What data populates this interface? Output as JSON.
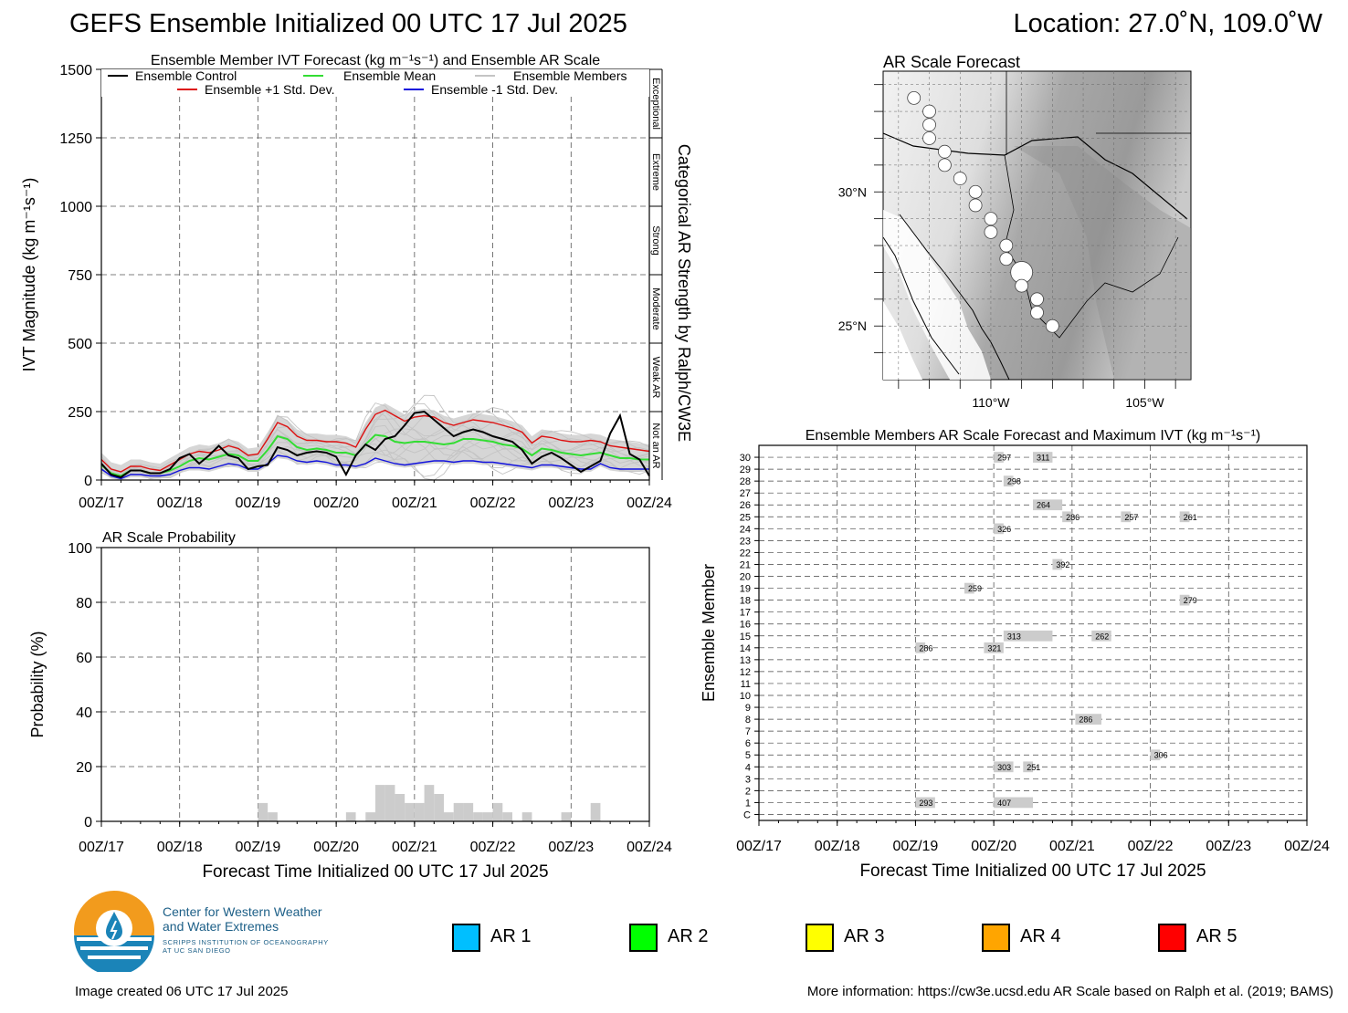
{
  "header": {
    "title": "GEFS Ensemble Initialized 00 UTC 17 Jul 2025",
    "location": "Location: 27.0˚N, 109.0˚W"
  },
  "colors": {
    "control": "#000000",
    "mean": "#33dd33",
    "plus_std": "#dd1111",
    "minus_std": "#1111dd",
    "members": "#c4c4c4",
    "envelope": "#d6d6d6",
    "prob_bar": "#cccccc",
    "ar1": "#00bfff",
    "ar2": "#00ff00",
    "ar3": "#ffff00",
    "ar4": "#ffa500",
    "ar5": "#ff0000"
  },
  "chart_data": [
    {
      "id": "ivt",
      "type": "line",
      "title": "Ensemble Member IVT Forecast (kg m⁻¹s⁻¹) and Ensemble AR Scale",
      "ylabel": "IVT Magnitude (kg m⁻¹s⁻¹)",
      "right_label": "Categorical AR Strength by Ralph/CW3E",
      "ylim": [
        0,
        1500
      ],
      "yticks": [
        0,
        250,
        500,
        750,
        1000,
        1250,
        1500
      ],
      "xlim": [
        0,
        168
      ],
      "x_tick_labels": [
        "00Z/17",
        "00Z/18",
        "00Z/19",
        "00Z/20",
        "00Z/21",
        "00Z/22",
        "00Z/23",
        "00Z/24"
      ],
      "categories": [
        {
          "label": "Not an AR",
          "from": 0,
          "to": 250
        },
        {
          "label": "Weak AR",
          "from": 250,
          "to": 500
        },
        {
          "label": "Moderate",
          "from": 500,
          "to": 750
        },
        {
          "label": "Strong",
          "from": 750,
          "to": 1000
        },
        {
          "label": "Extreme",
          "from": 1000,
          "to": 1250
        },
        {
          "label": "Exceptional",
          "from": 1250,
          "to": 1500
        }
      ],
      "legend": {
        "control": "Ensemble Control",
        "mean": "Ensemble Mean",
        "members": "Ensemble Members",
        "plus_std": "Ensemble +1 Std. Dev.",
        "minus_std": "Ensemble -1 Std. Dev."
      },
      "x": [
        0,
        3,
        6,
        9,
        12,
        15,
        18,
        21,
        24,
        27,
        30,
        33,
        36,
        39,
        42,
        45,
        48,
        51,
        54,
        57,
        60,
        63,
        66,
        69,
        72,
        75,
        78,
        81,
        84,
        87,
        90,
        93,
        96,
        99,
        102,
        105,
        108,
        111,
        114,
        117,
        120,
        123,
        126,
        129,
        132,
        135,
        138,
        141,
        144,
        147,
        150,
        153,
        156,
        159,
        162,
        165,
        168
      ],
      "series": [
        {
          "key": "plus_std",
          "values": [
            75,
            40,
            30,
            50,
            50,
            40,
            35,
            55,
            75,
            95,
            105,
            100,
            110,
            125,
            115,
            90,
            95,
            150,
            210,
            195,
            160,
            145,
            145,
            140,
            140,
            135,
            120,
            185,
            240,
            255,
            235,
            215,
            230,
            235,
            230,
            210,
            200,
            210,
            220,
            215,
            210,
            200,
            190,
            175,
            135,
            160,
            155,
            145,
            140,
            140,
            145,
            140,
            125,
            120,
            115,
            110,
            105
          ]
        },
        {
          "key": "mean",
          "values": [
            55,
            25,
            15,
            35,
            35,
            25,
            25,
            35,
            50,
            70,
            80,
            75,
            85,
            95,
            90,
            70,
            70,
            110,
            160,
            150,
            120,
            110,
            115,
            110,
            100,
            100,
            90,
            130,
            165,
            160,
            140,
            135,
            140,
            140,
            135,
            130,
            135,
            150,
            150,
            145,
            140,
            130,
            125,
            115,
            90,
            115,
            110,
            100,
            95,
            90,
            95,
            100,
            90,
            80,
            80,
            75,
            75
          ]
        },
        {
          "key": "minus_std",
          "values": [
            40,
            15,
            5,
            20,
            20,
            15,
            15,
            20,
            35,
            45,
            45,
            40,
            50,
            60,
            55,
            40,
            40,
            60,
            90,
            85,
            70,
            65,
            70,
            65,
            55,
            55,
            50,
            60,
            80,
            70,
            60,
            55,
            60,
            65,
            70,
            70,
            65,
            70,
            70,
            65,
            65,
            60,
            55,
            50,
            45,
            55,
            55,
            50,
            45,
            40,
            40,
            60,
            45,
            40,
            40,
            40,
            40
          ]
        },
        {
          "key": "control",
          "values": [
            60,
            20,
            10,
            35,
            35,
            25,
            25,
            40,
            80,
            95,
            60,
            90,
            125,
            90,
            80,
            40,
            50,
            55,
            120,
            110,
            90,
            100,
            105,
            100,
            85,
            20,
            90,
            130,
            110,
            150,
            160,
            200,
            245,
            250,
            220,
            190,
            160,
            175,
            185,
            175,
            160,
            150,
            140,
            110,
            60,
            85,
            100,
            80,
            55,
            30,
            50,
            70,
            170,
            235,
            95,
            75,
            15
          ]
        }
      ]
    },
    {
      "id": "probability",
      "type": "bar",
      "title": "AR Scale Probability",
      "xlabel": "Forecast Time Initialized 00 UTC 17 Jul 2025",
      "ylabel": "Probability (%)",
      "ylim": [
        0,
        100
      ],
      "yticks": [
        0,
        20,
        40,
        60,
        80,
        100
      ],
      "xlim": [
        0,
        168
      ],
      "x_tick_labels": [
        "00Z/17",
        "00Z/18",
        "00Z/19",
        "00Z/20",
        "00Z/21",
        "00Z/22",
        "00Z/23",
        "00Z/24"
      ],
      "x": [
        48,
        51,
        75,
        81,
        84,
        87,
        90,
        93,
        96,
        99,
        102,
        105,
        108,
        111,
        114,
        117,
        120,
        123,
        129,
        141,
        150
      ],
      "values": [
        6.7,
        3.3,
        3.3,
        3.3,
        13.3,
        13.3,
        10,
        6.7,
        6.7,
        13.3,
        10,
        3.3,
        6.7,
        6.7,
        3.3,
        3.3,
        6.7,
        3.3,
        3.3,
        3.3,
        6.7
      ]
    },
    {
      "id": "members",
      "type": "heatmap",
      "title": "Ensemble Members AR Scale Forecast and Maximum IVT (kg m⁻¹s⁻¹)",
      "xlabel": "Forecast Time Initialized 00 UTC 17 Jul 2025",
      "ylabel": "Ensemble Member",
      "xlim": [
        0,
        168
      ],
      "x_tick_labels": [
        "00Z/17",
        "00Z/18",
        "00Z/19",
        "00Z/20",
        "00Z/21",
        "00Z/22",
        "00Z/23",
        "00Z/24"
      ],
      "member_labels": [
        "C",
        "1",
        "2",
        "3",
        "4",
        "5",
        "6",
        "7",
        "8",
        "9",
        "10",
        "11",
        "12",
        "13",
        "14",
        "15",
        "16",
        "17",
        "18",
        "19",
        "20",
        "21",
        "22",
        "23",
        "24",
        "25",
        "26",
        "27",
        "28",
        "29",
        "30"
      ],
      "events": [
        {
          "member": 30,
          "start": 72,
          "end": 75,
          "ivt": "297"
        },
        {
          "member": 30,
          "start": 84,
          "end": 90,
          "ivt": "311"
        },
        {
          "member": 28,
          "start": 75,
          "end": 78,
          "ivt": "298"
        },
        {
          "member": 26,
          "start": 84,
          "end": 93,
          "ivt": "264"
        },
        {
          "member": 25,
          "start": 93,
          "end": 96,
          "ivt": "286"
        },
        {
          "member": 25,
          "start": 111,
          "end": 114,
          "ivt": "257"
        },
        {
          "member": 25,
          "start": 129,
          "end": 132,
          "ivt": "261"
        },
        {
          "member": 24,
          "start": 72,
          "end": 75,
          "ivt": "326"
        },
        {
          "member": 21,
          "start": 90,
          "end": 93,
          "ivt": "392"
        },
        {
          "member": 19,
          "start": 63,
          "end": 66,
          "ivt": "259"
        },
        {
          "member": 18,
          "start": 129,
          "end": 132,
          "ivt": "279"
        },
        {
          "member": 15,
          "start": 75,
          "end": 90,
          "ivt": "313"
        },
        {
          "member": 15,
          "start": 102,
          "end": 108,
          "ivt": "262"
        },
        {
          "member": 14,
          "start": 48,
          "end": 51,
          "ivt": "286"
        },
        {
          "member": 14,
          "start": 69,
          "end": 75,
          "ivt": "321"
        },
        {
          "member": 8,
          "start": 97,
          "end": 105,
          "ivt": "286"
        },
        {
          "member": 5,
          "start": 120,
          "end": 123,
          "ivt": "306"
        },
        {
          "member": 4,
          "start": 72,
          "end": 78,
          "ivt": "303"
        },
        {
          "member": 4,
          "start": 81,
          "end": 84,
          "ivt": "251"
        },
        {
          "member": 1,
          "start": 48,
          "end": 54,
          "ivt": "293"
        },
        {
          "member": 1,
          "start": 72,
          "end": 84,
          "ivt": "407"
        }
      ]
    }
  ],
  "map": {
    "title": "AR Scale Forecast",
    "lat_labels": [
      "30°N",
      "25°N"
    ],
    "lon_labels": [
      "110°W",
      "105°W"
    ],
    "markers": [
      {
        "lat": 33.5,
        "lon": -112.5,
        "size": 1
      },
      {
        "lat": 33.0,
        "lon": -112.0,
        "size": 1
      },
      {
        "lat": 32.5,
        "lon": -112.0,
        "size": 1
      },
      {
        "lat": 32.0,
        "lon": -112.0,
        "size": 1
      },
      {
        "lat": 31.5,
        "lon": -111.5,
        "size": 1
      },
      {
        "lat": 31.0,
        "lon": -111.5,
        "size": 1
      },
      {
        "lat": 30.5,
        "lon": -111.0,
        "size": 1
      },
      {
        "lat": 30.0,
        "lon": -110.5,
        "size": 1
      },
      {
        "lat": 29.5,
        "lon": -110.5,
        "size": 1
      },
      {
        "lat": 29.0,
        "lon": -110.0,
        "size": 1
      },
      {
        "lat": 28.5,
        "lon": -110.0,
        "size": 1
      },
      {
        "lat": 28.0,
        "lon": -109.5,
        "size": 1
      },
      {
        "lat": 27.5,
        "lon": -109.5,
        "size": 1
      },
      {
        "lat": 27.0,
        "lon": -109.0,
        "size": 2
      },
      {
        "lat": 26.5,
        "lon": -109.0,
        "size": 1
      },
      {
        "lat": 26.0,
        "lon": -108.5,
        "size": 1
      },
      {
        "lat": 25.5,
        "lon": -108.5,
        "size": 1
      },
      {
        "lat": 25.0,
        "lon": -108.0,
        "size": 1
      }
    ]
  },
  "ar_legend": [
    {
      "label": "AR 1",
      "color": "#00bfff"
    },
    {
      "label": "AR 2",
      "color": "#00ff00"
    },
    {
      "label": "AR 3",
      "color": "#ffff00"
    },
    {
      "label": "AR 4",
      "color": "#ffa500"
    },
    {
      "label": "AR 5",
      "color": "#ff0000"
    }
  ],
  "logo": {
    "line1": "Center for Western Weather",
    "line2": "and Water Extremes",
    "line3": "SCRIPPS INSTITUTION OF OCEANOGRAPHY",
    "line4": "AT UC SAN DIEGO"
  },
  "footer": {
    "left": "Image created 06 UTC 17 Jul 2025",
    "right": "More information: https://cw3e.ucsd.edu AR Scale based on Ralph et al. (2019; BAMS)"
  }
}
